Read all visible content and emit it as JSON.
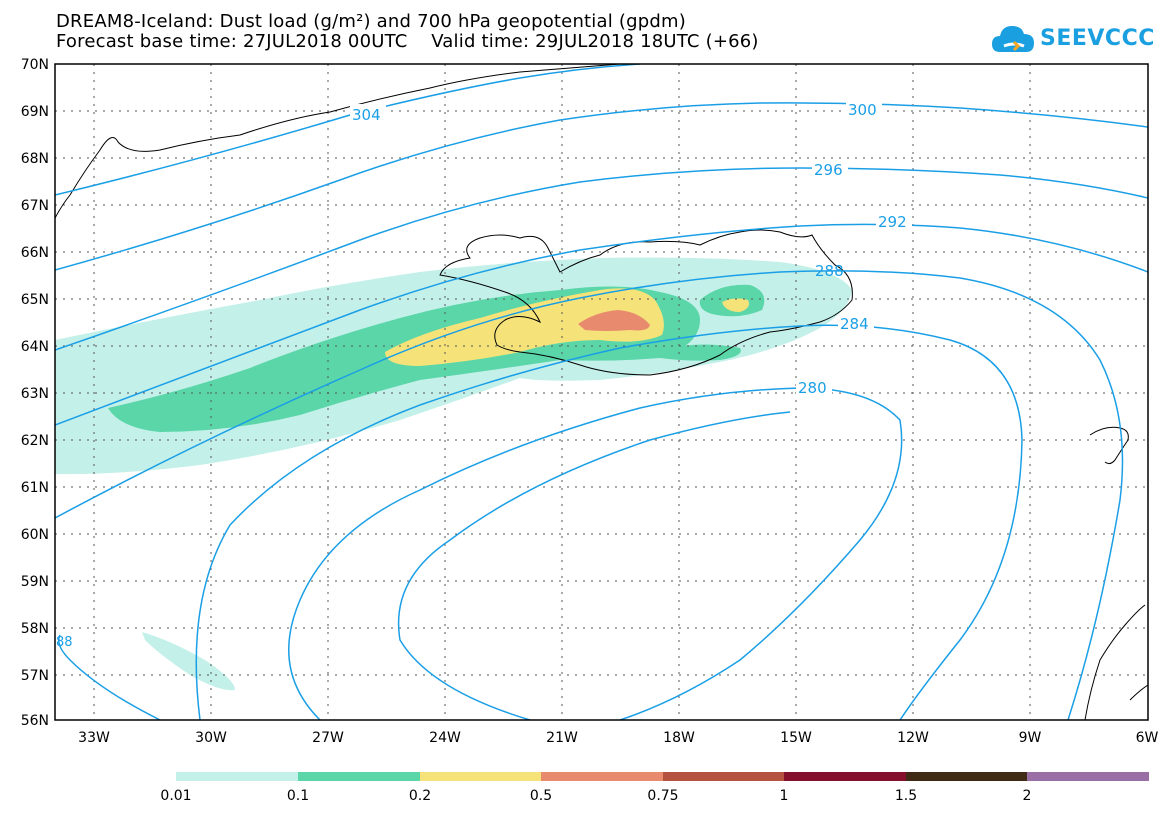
{
  "header": {
    "title_line1": "DREAM8-Iceland: Dust load (g/m²) and 700 hPa geopotential (gpdm)",
    "title_line2": "Forecast base time: 27JUL2018 00UTC    Valid time: 29JUL2018 18UTC (+66)"
  },
  "logo": {
    "text": "SEEVCCC",
    "icon": "cloud-icon"
  },
  "map": {
    "lat_labels": [
      "70N",
      "69N",
      "68N",
      "67N",
      "66N",
      "65N",
      "64N",
      "63N",
      "62N",
      "61N",
      "60N",
      "59N",
      "58N",
      "57N",
      "56N"
    ],
    "lon_labels": [
      "33W",
      "30W",
      "27W",
      "24W",
      "21W",
      "18W",
      "15W",
      "12W",
      "9W",
      "6W"
    ],
    "contour_labels": {
      "c304": "304",
      "c300": "300",
      "c296": "296",
      "c292": "292",
      "c288": "288",
      "c284": "284",
      "c280": "280",
      "c288b": "88"
    },
    "contour_color": "#1a9fe6"
  },
  "colorbar": {
    "labels": [
      "0.01",
      "0.1",
      "0.2",
      "0.5",
      "0.75",
      "1",
      "1.5",
      "2"
    ],
    "colors": [
      "#c4f0ea",
      "#5ad6a8",
      "#f5e37a",
      "#e88a6e",
      "#b5523f",
      "#85102c",
      "#3f2a15",
      "#9a6fa6"
    ]
  }
}
